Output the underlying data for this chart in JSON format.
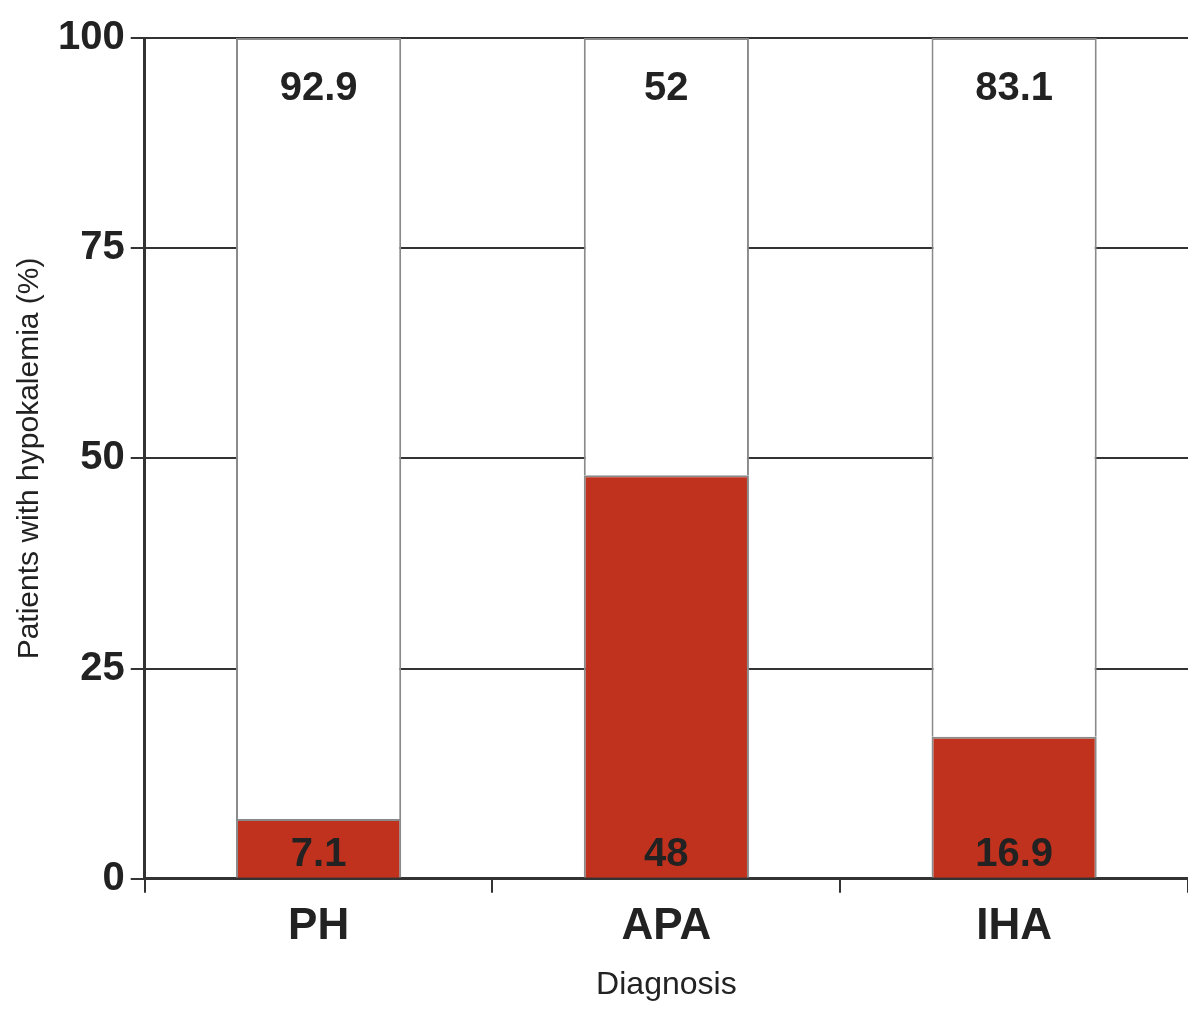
{
  "chart_data": {
    "type": "bar",
    "xlabel": "Diagnosis",
    "ylabel": "Patients with hypokalemia (%)",
    "categories": [
      "PH",
      "APA",
      "IHA"
    ],
    "series": [
      {
        "color": "#c0321e",
        "values": [
          7.1,
          48,
          16.9
        ]
      },
      {
        "color": "#ffffff",
        "values": [
          92.9,
          52,
          83.1
        ]
      }
    ],
    "stacked": true,
    "ylim": [
      0,
      100
    ],
    "yticks": [
      0,
      25,
      50,
      75,
      100
    ],
    "grid": "y",
    "data_labels": true
  }
}
